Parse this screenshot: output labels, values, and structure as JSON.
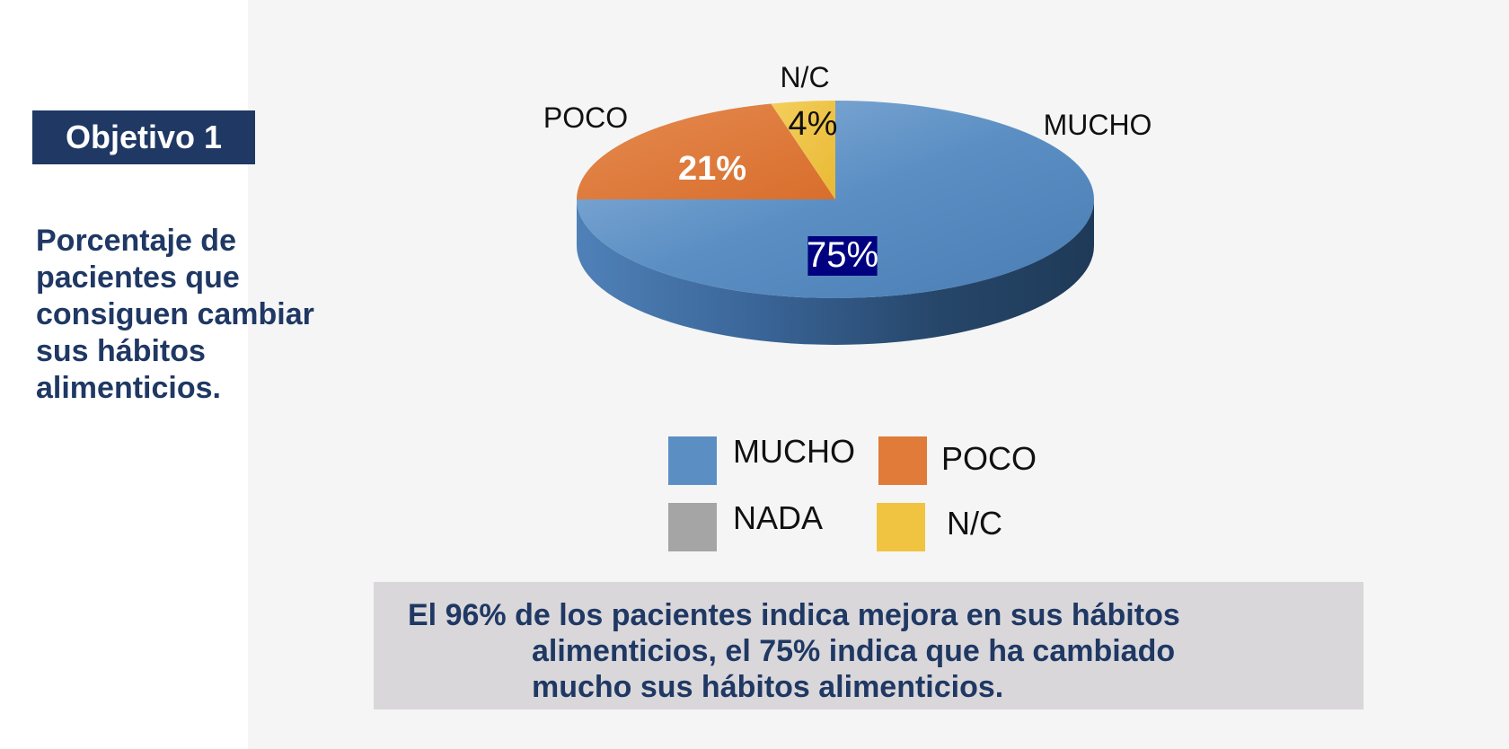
{
  "objective": {
    "label": "Objetivo 1"
  },
  "description": {
    "lines": [
      "Porcentaje de",
      "pacientes que",
      "consiguen cambiar",
      "sus hábitos",
      "alimenticios."
    ]
  },
  "chart_data": {
    "type": "pie",
    "title": "",
    "style": "3d",
    "categories": [
      "MUCHO",
      "POCO",
      "NADA",
      "N/C"
    ],
    "values": [
      75,
      21,
      0,
      4
    ],
    "value_labels": [
      "75%",
      "21%",
      "",
      "4%"
    ],
    "colors": [
      "#5b8fc4",
      "#e07b39",
      "#a5a5a5",
      "#f0c441"
    ],
    "legend": {
      "position": "bottom",
      "items": [
        "MUCHO",
        "POCO",
        "NADA",
        "N/C"
      ]
    }
  },
  "summary": {
    "lines": [
      "El 96% de los pacientes indica mejora en sus hábitos",
      "alimenticios, el 75% indica que ha cambiado",
      "mucho sus hábitos alimenticios."
    ]
  }
}
